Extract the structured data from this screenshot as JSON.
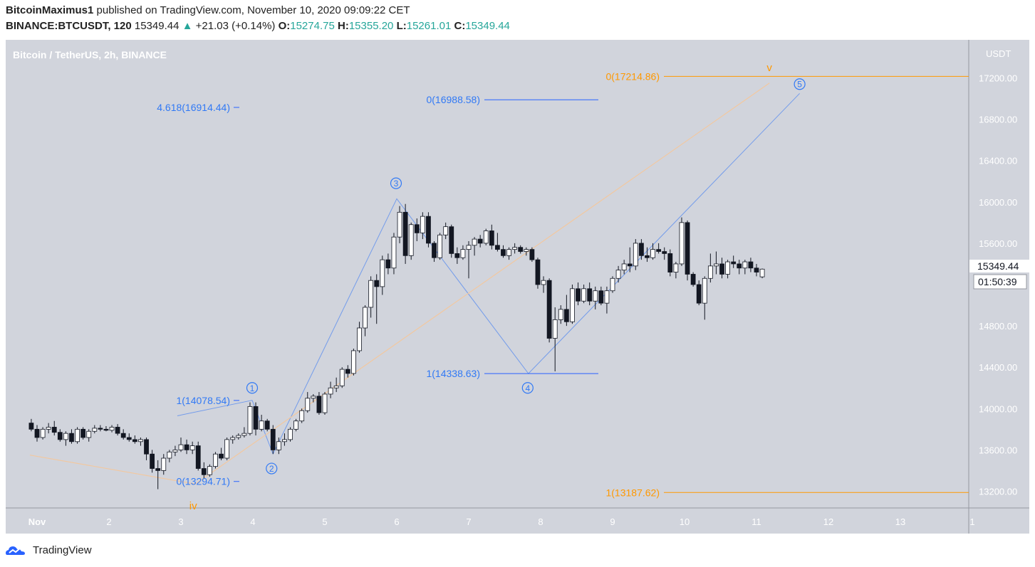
{
  "header": {
    "author": "BitcoinMaximus1",
    "published": "published on TradingView.com, November 10, 2020 09:09:22 CET",
    "symbol": "BINANCE:BTCUSDT, 120",
    "last": "15349.44",
    "change": "+21.03 (+0.14%)",
    "o_label": "O:",
    "o_value": "15274.75",
    "h_label": "H:",
    "h_value": "15355.20",
    "l_label": "L:",
    "l_value": "15261.01",
    "c_label": "C:",
    "c_value": "15349.44"
  },
  "footer": {
    "brand": "TradingView"
  },
  "colors": {
    "plot_bg": "#d1d4dc",
    "up": "#ffffff",
    "down": "#131722",
    "blue": "#2962ff",
    "blue_text": "#3179f5",
    "orange": "#ff9800",
    "peach": "#f2c8a0"
  },
  "chart_data": {
    "type": "candlestick",
    "title": "Bitcoin / TetherUS, 2h, BINANCE",
    "currency": "USDT",
    "x_ticks": [
      "Nov",
      "2",
      "3",
      "4",
      "5",
      "6",
      "7",
      "8",
      "9",
      "10",
      "11",
      "12",
      "13",
      "1"
    ],
    "y_ticks": [
      "13200.00",
      "13600.00",
      "14000.00",
      "14400.00",
      "14800.00",
      "15200.00",
      "15600.00",
      "16000.00",
      "16400.00",
      "16800.00",
      "17200.00"
    ],
    "y_range": [
      12950,
      17400
    ],
    "x_range_days": [
      0.9,
      14.0
    ],
    "last_price_label": "15349.44",
    "countdown_label": "01:50:39",
    "candles": [
      [
        0.92,
        13860,
        13900,
        13780,
        13800
      ],
      [
        1.0,
        13800,
        13840,
        13680,
        13720
      ],
      [
        1.08,
        13720,
        13820,
        13700,
        13800
      ],
      [
        1.16,
        13800,
        13860,
        13760,
        13820
      ],
      [
        1.24,
        13820,
        13880,
        13740,
        13770
      ],
      [
        1.32,
        13770,
        13800,
        13680,
        13700
      ],
      [
        1.4,
        13700,
        13780,
        13640,
        13760
      ],
      [
        1.48,
        13760,
        13800,
        13660,
        13680
      ],
      [
        1.56,
        13680,
        13820,
        13660,
        13800
      ],
      [
        1.64,
        13800,
        13820,
        13700,
        13720
      ],
      [
        1.72,
        13720,
        13800,
        13680,
        13780
      ],
      [
        1.8,
        13780,
        13840,
        13760,
        13810
      ],
      [
        1.88,
        13810,
        13840,
        13780,
        13800
      ],
      [
        1.96,
        13800,
        13830,
        13780,
        13790
      ],
      [
        2.04,
        13790,
        13840,
        13770,
        13820
      ],
      [
        2.12,
        13820,
        13850,
        13740,
        13760
      ],
      [
        2.2,
        13760,
        13800,
        13700,
        13720
      ],
      [
        2.28,
        13720,
        13760,
        13680,
        13700
      ],
      [
        2.36,
        13700,
        13740,
        13660,
        13680
      ],
      [
        2.44,
        13680,
        13720,
        13640,
        13700
      ],
      [
        2.52,
        13700,
        13720,
        13500,
        13560
      ],
      [
        2.6,
        13560,
        13600,
        13380,
        13420
      ],
      [
        2.68,
        13420,
        13500,
        13220,
        13400
      ],
      [
        2.76,
        13400,
        13560,
        13360,
        13520
      ],
      [
        2.84,
        13520,
        13600,
        13480,
        13580
      ],
      [
        2.92,
        13580,
        13640,
        13540,
        13600
      ],
      [
        3.0,
        13600,
        13720,
        13580,
        13650
      ],
      [
        3.08,
        13650,
        13700,
        13560,
        13600
      ],
      [
        3.16,
        13600,
        13680,
        13560,
        13640
      ],
      [
        3.24,
        13640,
        13680,
        13400,
        13420
      ],
      [
        3.32,
        13420,
        13480,
        13320,
        13360
      ],
      [
        3.4,
        13360,
        13460,
        13340,
        13440
      ],
      [
        3.48,
        13440,
        13580,
        13420,
        13560
      ],
      [
        3.56,
        13560,
        13620,
        13500,
        13520
      ],
      [
        3.64,
        13520,
        13720,
        13500,
        13700
      ],
      [
        3.72,
        13700,
        13740,
        13660,
        13720
      ],
      [
        3.8,
        13720,
        13760,
        13700,
        13740
      ],
      [
        3.88,
        13740,
        13820,
        13720,
        13760
      ],
      [
        3.96,
        13760,
        14060,
        13740,
        14020
      ],
      [
        4.04,
        14020,
        14060,
        13740,
        13800
      ],
      [
        4.12,
        13800,
        13940,
        13780,
        13880
      ],
      [
        4.2,
        13880,
        13900,
        13780,
        13800
      ],
      [
        4.28,
        13800,
        13840,
        13560,
        13600
      ],
      [
        4.36,
        13600,
        13720,
        13560,
        13680
      ],
      [
        4.44,
        13680,
        13760,
        13640,
        13700
      ],
      [
        4.52,
        13700,
        13820,
        13680,
        13800
      ],
      [
        4.6,
        13800,
        13900,
        13780,
        13880
      ],
      [
        4.68,
        13880,
        14000,
        13860,
        13980
      ],
      [
        4.76,
        13980,
        14160,
        13960,
        14100
      ],
      [
        4.84,
        14100,
        14140,
        14060,
        14120
      ],
      [
        4.92,
        14120,
        14160,
        13940,
        13960
      ],
      [
        5.0,
        13960,
        14160,
        13940,
        14140
      ],
      [
        5.08,
        14140,
        14260,
        14100,
        14200
      ],
      [
        5.16,
        14200,
        14300,
        14160,
        14220
      ],
      [
        5.24,
        14220,
        14400,
        14200,
        14380
      ],
      [
        5.32,
        14380,
        14420,
        14300,
        14340
      ],
      [
        5.4,
        14340,
        14580,
        14320,
        14560
      ],
      [
        5.48,
        14560,
        14840,
        14540,
        14780
      ],
      [
        5.56,
        14780,
        15000,
        14700,
        14980
      ],
      [
        5.64,
        14980,
        15280,
        14880,
        15240
      ],
      [
        5.72,
        15240,
        15300,
        14820,
        15180
      ],
      [
        5.8,
        15180,
        15480,
        15100,
        15440
      ],
      [
        5.88,
        15440,
        15500,
        15300,
        15360
      ],
      [
        5.96,
        15360,
        15700,
        15300,
        15660
      ],
      [
        6.04,
        15660,
        15960,
        15600,
        15900
      ],
      [
        6.12,
        15900,
        15980,
        15400,
        15480
      ],
      [
        6.2,
        15480,
        15800,
        15440,
        15780
      ],
      [
        6.28,
        15780,
        15840,
        15620,
        15700
      ],
      [
        6.36,
        15700,
        15900,
        15640,
        15860
      ],
      [
        6.44,
        15860,
        15900,
        15560,
        15600
      ],
      [
        6.52,
        15600,
        15620,
        15420,
        15460
      ],
      [
        6.6,
        15460,
        15700,
        15440,
        15680
      ],
      [
        6.68,
        15680,
        15800,
        15640,
        15760
      ],
      [
        6.76,
        15760,
        15780,
        15460,
        15500
      ],
      [
        6.84,
        15500,
        15560,
        15400,
        15460
      ],
      [
        6.92,
        15460,
        15580,
        15440,
        15540
      ],
      [
        7.0,
        15540,
        15620,
        15260,
        15580
      ],
      [
        7.08,
        15580,
        15660,
        15480,
        15640
      ],
      [
        7.16,
        15640,
        15680,
        15560,
        15600
      ],
      [
        7.24,
        15600,
        15740,
        15580,
        15720
      ],
      [
        7.32,
        15720,
        15780,
        15540,
        15580
      ],
      [
        7.4,
        15580,
        15700,
        15520,
        15540
      ],
      [
        7.48,
        15540,
        15580,
        15460,
        15480
      ],
      [
        7.56,
        15480,
        15560,
        15440,
        15540
      ],
      [
        7.64,
        15540,
        15600,
        15500,
        15560
      ],
      [
        7.72,
        15560,
        15580,
        15500,
        15520
      ],
      [
        7.8,
        15520,
        15560,
        15480,
        15540
      ],
      [
        7.88,
        15540,
        15560,
        15420,
        15440
      ],
      [
        7.96,
        15440,
        15460,
        15160,
        15200
      ],
      [
        8.04,
        15200,
        15280,
        15120,
        15240
      ],
      [
        8.12,
        15240,
        15260,
        14640,
        14680
      ],
      [
        8.2,
        14680,
        14980,
        14360,
        14860
      ],
      [
        8.28,
        14860,
        15000,
        14820,
        14960
      ],
      [
        8.36,
        14960,
        15100,
        14800,
        14840
      ],
      [
        8.44,
        14840,
        15200,
        14820,
        15160
      ],
      [
        8.52,
        15160,
        15220,
        15000,
        15040
      ],
      [
        8.6,
        15040,
        15200,
        15020,
        15160
      ],
      [
        8.68,
        15160,
        15220,
        15000,
        15040
      ],
      [
        8.76,
        15040,
        15180,
        14960,
        15140
      ],
      [
        8.84,
        15140,
        15180,
        15000,
        15020
      ],
      [
        8.92,
        15020,
        15180,
        14920,
        15140
      ],
      [
        9.0,
        15140,
        15280,
        15120,
        15260
      ],
      [
        9.08,
        15260,
        15380,
        15220,
        15340
      ],
      [
        9.16,
        15340,
        15440,
        15300,
        15400
      ],
      [
        9.24,
        15400,
        15560,
        15320,
        15380
      ],
      [
        9.32,
        15380,
        15640,
        15340,
        15600
      ],
      [
        9.4,
        15600,
        15640,
        15440,
        15480
      ],
      [
        9.48,
        15480,
        15560,
        15420,
        15460
      ],
      [
        9.56,
        15460,
        15600,
        15440,
        15540
      ],
      [
        9.64,
        15540,
        15600,
        15500,
        15520
      ],
      [
        9.72,
        15520,
        15560,
        15440,
        15500
      ],
      [
        9.8,
        15500,
        15540,
        15280,
        15320
      ],
      [
        9.88,
        15320,
        15420,
        15260,
        15400
      ],
      [
        9.96,
        15400,
        15850,
        15380,
        15800
      ],
      [
        10.04,
        15800,
        15820,
        15240,
        15300
      ],
      [
        10.12,
        15300,
        15320,
        15180,
        15200
      ],
      [
        10.2,
        15200,
        15240,
        15000,
        15020
      ],
      [
        10.28,
        15020,
        15280,
        14860,
        15260
      ],
      [
        10.36,
        15260,
        15500,
        15220,
        15380
      ],
      [
        10.44,
        15380,
        15520,
        15300,
        15400
      ],
      [
        10.52,
        15400,
        15460,
        15260,
        15300
      ],
      [
        10.6,
        15300,
        15440,
        15260,
        15420
      ],
      [
        10.68,
        15420,
        15480,
        15360,
        15400
      ],
      [
        10.76,
        15400,
        15440,
        15300,
        15360
      ],
      [
        10.84,
        15360,
        15440,
        15300,
        15420
      ],
      [
        10.92,
        15420,
        15460,
        15320,
        15360
      ],
      [
        11.0,
        15360,
        15400,
        15280,
        15320
      ],
      [
        11.08,
        15274.75,
        15355.2,
        15261.01,
        15349.44
      ]
    ],
    "fib_blue": [
      {
        "label": "4.618(16914.44)",
        "price": 16914.44
      },
      {
        "label": "0(16988.58)",
        "price": 16988.58
      },
      {
        "label": "1(14078.54)",
        "price": 14078.54
      },
      {
        "label": "0(13294.71)",
        "price": 13294.71
      },
      {
        "label": "1(14338.63)",
        "price": 14338.63
      }
    ],
    "fib_orange": [
      {
        "label": "0(17214.86)",
        "price": 17214.86
      },
      {
        "label": "1(13187.62)",
        "price": 13187.62
      }
    ],
    "wave_labels": [
      {
        "text": "1",
        "day": 3.99,
        "price": 14200
      },
      {
        "text": "2",
        "day": 4.26,
        "price": 13420
      },
      {
        "text": "3",
        "day": 5.99,
        "price": 16180
      },
      {
        "text": "4",
        "day": 7.82,
        "price": 14200
      },
      {
        "text": "5",
        "day": 11.6,
        "price": 17140
      }
    ],
    "orange_labels": [
      {
        "text": "iv",
        "day": 3.17,
        "price": 13060
      },
      {
        "text": "v",
        "day": 11.18,
        "price": 17300
      }
    ]
  }
}
